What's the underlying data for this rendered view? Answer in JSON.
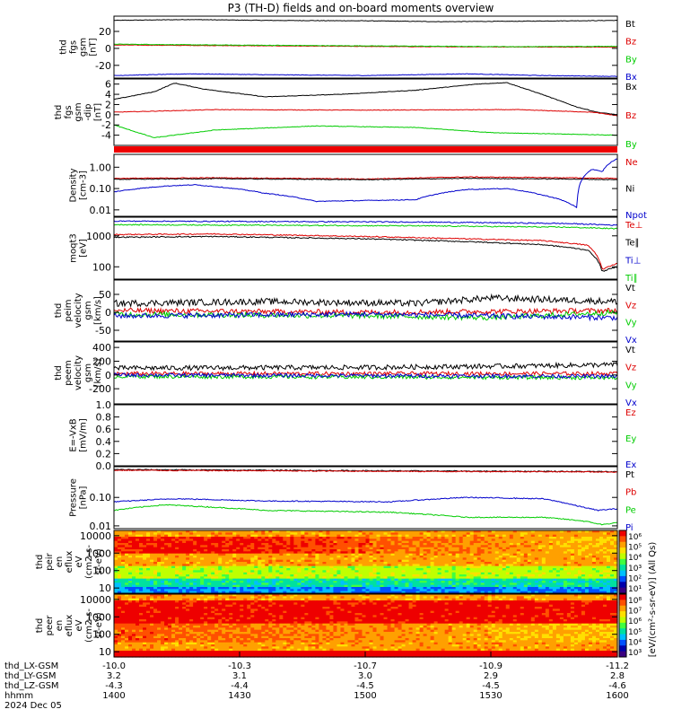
{
  "title": "P3 (TH-D) fields and on-board moments overview",
  "colors": {
    "black": "#000000",
    "red": "#dd0000",
    "green": "#00cc00",
    "blue": "#0000cc"
  },
  "chart_data": [
    {
      "type": "line",
      "ylabel": [
        "thd",
        "fgs",
        "gsm",
        "[nT]"
      ],
      "ylim": [
        -35,
        38
      ],
      "yticks": [
        {
          "v": 20,
          "label": "20"
        },
        {
          "v": 0,
          "label": "0"
        },
        {
          "v": -20,
          "label": "-20"
        }
      ],
      "series": [
        {
          "name": "Bt",
          "color": "#000000",
          "trend": [
            [
              0,
              33
            ],
            [
              0.15,
              34
            ],
            [
              0.3,
              33
            ],
            [
              0.5,
              32.5
            ],
            [
              0.65,
              31.5
            ],
            [
              0.8,
              32
            ],
            [
              1,
              33
            ]
          ]
        },
        {
          "name": "Bz",
          "color": "#dd0000",
          "trend": [
            [
              0,
              4
            ],
            [
              0.3,
              3
            ],
            [
              0.6,
              2
            ],
            [
              1,
              1.5
            ]
          ]
        },
        {
          "name": "By",
          "color": "#00cc00",
          "trend": [
            [
              0,
              5
            ],
            [
              0.2,
              4
            ],
            [
              0.5,
              3
            ],
            [
              0.8,
              2
            ],
            [
              1,
              2.5
            ]
          ]
        },
        {
          "name": "Bx",
          "color": "#0000cc",
          "trend": [
            [
              0,
              -32
            ],
            [
              0.15,
              -30
            ],
            [
              0.3,
              -31
            ],
            [
              0.5,
              -32
            ],
            [
              0.7,
              -30
            ],
            [
              0.85,
              -32
            ],
            [
              1,
              -33
            ]
          ]
        }
      ]
    },
    {
      "type": "line",
      "ylabel": [
        "thd",
        "fgs",
        "gsm",
        "-dip",
        "[nT]"
      ],
      "ylim": [
        -6,
        7
      ],
      "yticks": [
        {
          "v": 6,
          "label": "6"
        },
        {
          "v": 4,
          "label": "4"
        },
        {
          "v": 2,
          "label": "2"
        },
        {
          "v": 0,
          "label": "0"
        },
        {
          "v": -2,
          "label": "-2"
        },
        {
          "v": -4,
          "label": "-4"
        }
      ],
      "series": [
        {
          "name": "Bx",
          "color": "#000000",
          "trend": [
            [
              0,
              3
            ],
            [
              0.08,
              4.5
            ],
            [
              0.12,
              6.2
            ],
            [
              0.18,
              5
            ],
            [
              0.3,
              3.5
            ],
            [
              0.45,
              4
            ],
            [
              0.6,
              4.8
            ],
            [
              0.72,
              6
            ],
            [
              0.78,
              6.3
            ],
            [
              0.85,
              4
            ],
            [
              0.92,
              1.5
            ],
            [
              0.96,
              0.5
            ],
            [
              1,
              0
            ]
          ]
        },
        {
          "name": "Bz",
          "color": "#dd0000",
          "trend": [
            [
              0,
              0.5
            ],
            [
              0.2,
              1
            ],
            [
              0.5,
              0.9
            ],
            [
              0.8,
              1
            ],
            [
              0.95,
              0.5
            ],
            [
              1,
              -0.2
            ]
          ]
        },
        {
          "name": "By",
          "color": "#00cc00",
          "trend": [
            [
              0,
              -2
            ],
            [
              0.08,
              -4.5
            ],
            [
              0.2,
              -3
            ],
            [
              0.4,
              -2.2
            ],
            [
              0.6,
              -2.5
            ],
            [
              0.75,
              -3.5
            ],
            [
              0.9,
              -3.8
            ],
            [
              1,
              -4
            ]
          ]
        }
      ]
    },
    {
      "type": "line",
      "yscale": "log",
      "ylabel": [
        "Density",
        "[cm-3]"
      ],
      "ylim": [
        0.005,
        4
      ],
      "yticks": [
        {
          "v": 1,
          "label": "1.00"
        },
        {
          "v": 0.1,
          "label": "0.10"
        },
        {
          "v": 0.01,
          "label": "0.01"
        }
      ],
      "series": [
        {
          "name": "Ne",
          "color": "#dd0000",
          "trend": [
            [
              0,
              0.3
            ],
            [
              0.2,
              0.32
            ],
            [
              0.5,
              0.28
            ],
            [
              0.7,
              0.35
            ],
            [
              0.9,
              0.32
            ],
            [
              1,
              0.3
            ]
          ]
        },
        {
          "name": "Ni",
          "color": "#000000",
          "trend": [
            [
              0,
              0.27
            ],
            [
              0.2,
              0.29
            ],
            [
              0.5,
              0.26
            ],
            [
              0.7,
              0.3
            ],
            [
              0.9,
              0.28
            ],
            [
              1,
              0.26
            ]
          ]
        },
        {
          "name": "Npot",
          "color": "#0000cc",
          "trend": [
            [
              0,
              0.07
            ],
            [
              0.1,
              0.13
            ],
            [
              0.16,
              0.15
            ],
            [
              0.3,
              0.06
            ],
            [
              0.4,
              0.025
            ],
            [
              0.6,
              0.03
            ],
            [
              0.7,
              0.09
            ],
            [
              0.78,
              0.1
            ],
            [
              0.85,
              0.05
            ],
            [
              0.92,
              0.012
            ],
            [
              0.95,
              0.8
            ],
            [
              0.97,
              0.6
            ],
            [
              1,
              2.5
            ]
          ]
        }
      ]
    },
    {
      "type": "line",
      "yscale": "log",
      "ylabel": [
        "moqt3",
        "[eV]"
      ],
      "ylim": [
        40,
        4000
      ],
      "yticks": [
        {
          "v": 1000,
          "label": "1000"
        },
        {
          "v": 100,
          "label": "100"
        }
      ],
      "series": [
        {
          "name": "Te⊥",
          "color": "#dd0000",
          "trend": [
            [
              0,
              1100
            ],
            [
              0.2,
              1150
            ],
            [
              0.5,
              950
            ],
            [
              0.7,
              800
            ],
            [
              0.85,
              700
            ],
            [
              0.94,
              500
            ],
            [
              0.97,
              80
            ],
            [
              1,
              130
            ]
          ]
        },
        {
          "name": "Te∥",
          "color": "#000000",
          "trend": [
            [
              0,
              900
            ],
            [
              0.2,
              950
            ],
            [
              0.5,
              800
            ],
            [
              0.7,
              650
            ],
            [
              0.85,
              520
            ],
            [
              0.94,
              350
            ],
            [
              0.97,
              70
            ],
            [
              1,
              100
            ]
          ]
        },
        {
          "name": "Ti⊥",
          "color": "#0000cc",
          "trend": [
            [
              0,
              3000
            ],
            [
              0.3,
              2900
            ],
            [
              0.6,
              2800
            ],
            [
              0.9,
              2500
            ],
            [
              1,
              2200
            ]
          ]
        },
        {
          "name": "Ti∥",
          "color": "#00cc00",
          "trend": [
            [
              0,
              2300
            ],
            [
              0.3,
              2200
            ],
            [
              0.6,
              2100
            ],
            [
              0.9,
              1900
            ],
            [
              1,
              1700
            ]
          ]
        }
      ]
    },
    {
      "type": "line",
      "ylabel": [
        "thd",
        "peim",
        "velocity",
        "gsm",
        "[km/s]"
      ],
      "ylim": [
        -80,
        90
      ],
      "yticks": [
        {
          "v": 50,
          "label": "50"
        },
        {
          "v": 0,
          "label": "0"
        },
        {
          "v": -50,
          "label": "-50"
        }
      ],
      "series": [
        {
          "name": "Vt",
          "color": "#000000",
          "trend": [
            [
              0,
              25
            ],
            [
              0.3,
              30
            ],
            [
              0.6,
              25
            ],
            [
              0.75,
              40
            ],
            [
              1,
              30
            ]
          ]
        },
        {
          "name": "Vz",
          "color": "#dd0000",
          "trend": [
            [
              0,
              5
            ],
            [
              0.5,
              0
            ],
            [
              1,
              5
            ]
          ]
        },
        {
          "name": "Vy",
          "color": "#00cc00",
          "trend": [
            [
              0,
              -5
            ],
            [
              0.5,
              -10
            ],
            [
              0.75,
              -15
            ],
            [
              1,
              0
            ]
          ]
        },
        {
          "name": "Vx",
          "color": "#0000cc",
          "trend": [
            [
              0,
              -10
            ],
            [
              0.5,
              -5
            ],
            [
              1,
              -15
            ]
          ]
        }
      ]
    },
    {
      "type": "line",
      "ylabel": [
        "thd",
        "peem",
        "velocity",
        "gsm",
        "[km/s]"
      ],
      "ylim": [
        -420,
        480
      ],
      "yticks": [
        {
          "v": 400,
          "label": "400"
        },
        {
          "v": 200,
          "label": "200"
        },
        {
          "v": 0,
          "label": "0"
        },
        {
          "v": -200,
          "label": "-200"
        }
      ],
      "series": [
        {
          "name": "Vt",
          "color": "#000000",
          "trend": [
            [
              0,
              100
            ],
            [
              0.5,
              110
            ],
            [
              0.8,
              130
            ],
            [
              1,
              150
            ]
          ]
        },
        {
          "name": "Vz",
          "color": "#dd0000",
          "trend": [
            [
              0,
              20
            ],
            [
              1,
              20
            ]
          ]
        },
        {
          "name": "Vy",
          "color": "#00cc00",
          "trend": [
            [
              0,
              -20
            ],
            [
              1,
              -40
            ]
          ]
        },
        {
          "name": "Vx",
          "color": "#0000cc",
          "trend": [
            [
              0,
              0
            ],
            [
              1,
              -20
            ]
          ]
        }
      ]
    },
    {
      "type": "line",
      "ylabel": [
        "E=-VxB",
        "[mV/m]"
      ],
      "ylim": [
        0,
        1
      ],
      "yticks": [
        {
          "v": 1.0,
          "label": "1.0"
        },
        {
          "v": 0.8,
          "label": "0.8"
        },
        {
          "v": 0.6,
          "label": "0.6"
        },
        {
          "v": 0.4,
          "label": "0.4"
        },
        {
          "v": 0.2,
          "label": "0.2"
        },
        {
          "v": 0.0,
          "label": "0.0"
        }
      ],
      "series": [
        {
          "name": "Ez",
          "color": "#dd0000",
          "trend": []
        },
        {
          "name": "Ey",
          "color": "#00cc00",
          "trend": []
        },
        {
          "name": "Ex",
          "color": "#0000cc",
          "trend": []
        }
      ]
    },
    {
      "type": "line",
      "yscale": "log",
      "ylabel": [
        "Pressure",
        "[nPa]"
      ],
      "ylim": [
        0.008,
        1.2
      ],
      "yticks": [
        {
          "v": 0.1,
          "label": "0.10"
        },
        {
          "v": 0.01,
          "label": "0.01"
        }
      ],
      "series": [
        {
          "name": "Pt",
          "color": "#000000",
          "trend": [
            [
              0,
              0.95
            ],
            [
              0.3,
              0.9
            ],
            [
              0.6,
              0.85
            ],
            [
              0.9,
              0.82
            ],
            [
              1,
              0.8
            ]
          ]
        },
        {
          "name": "Pb",
          "color": "#dd0000",
          "trend": [
            [
              0,
              0.9
            ],
            [
              0.3,
              0.86
            ],
            [
              0.6,
              0.82
            ],
            [
              0.9,
              0.8
            ],
            [
              1,
              0.78
            ]
          ]
        },
        {
          "name": "Pe",
          "color": "#00cc00",
          "trend": [
            [
              0,
              0.035
            ],
            [
              0.1,
              0.055
            ],
            [
              0.3,
              0.035
            ],
            [
              0.55,
              0.03
            ],
            [
              0.7,
              0.02
            ],
            [
              0.85,
              0.02
            ],
            [
              0.93,
              0.015
            ],
            [
              0.97,
              0.011
            ],
            [
              1,
              0.013
            ]
          ]
        },
        {
          "name": "Pi",
          "color": "#0000cc",
          "trend": [
            [
              0,
              0.07
            ],
            [
              0.12,
              0.09
            ],
            [
              0.3,
              0.075
            ],
            [
              0.55,
              0.07
            ],
            [
              0.7,
              0.1
            ],
            [
              0.85,
              0.09
            ],
            [
              0.92,
              0.05
            ],
            [
              0.96,
              0.035
            ],
            [
              1,
              0.04
            ]
          ]
        }
      ]
    },
    {
      "type": "heatmap",
      "yscale": "log",
      "ylabel": [
        "thd",
        "peir",
        "en",
        "eflux",
        "eV",
        "(cm2-s-",
        "sr-eV)"
      ],
      "ylim": [
        5,
        20000
      ],
      "yticks": [
        {
          "v": 10000,
          "label": "10000"
        },
        {
          "v": 1000,
          "label": "1000"
        },
        {
          "v": 100,
          "label": "100"
        },
        {
          "v": 10,
          "label": "10"
        }
      ]
    },
    {
      "type": "heatmap",
      "yscale": "log",
      "ylabel": [
        "thd",
        "peer",
        "en",
        "eflux",
        "eV",
        "(cm2-s-",
        "sr-eV)"
      ],
      "ylim": [
        5,
        20000
      ],
      "yticks": [
        {
          "v": 10000,
          "label": "10000"
        },
        {
          "v": 1000,
          "label": "1000"
        },
        {
          "v": 100,
          "label": "100"
        },
        {
          "v": 10,
          "label": "10"
        }
      ]
    }
  ],
  "colorbar": {
    "upper_ticks": [
      "10⁶",
      "10⁵",
      "10⁴",
      "10³",
      "10²",
      "10¹"
    ],
    "lower_ticks": [
      "10⁸",
      "10⁷",
      "10⁶",
      "10⁵",
      "10⁴",
      "10³"
    ],
    "label": "[eV/(cm²-s-sr-eV)]",
    "label2": "[eV/(cm²-s-sr-eV)] (All Qs)"
  },
  "xaxis": {
    "rows": [
      {
        "name": "thd_LX-GSM",
        "values": [
          "-10.0",
          "-10.3",
          "-10.7",
          "-10.9",
          "-11.2"
        ]
      },
      {
        "name": "thd_LY-GSM",
        "values": [
          "3.2",
          "3.1",
          "3.0",
          "2.9",
          "2.8"
        ]
      },
      {
        "name": "thd_LZ-GSM",
        "values": [
          "-4.3",
          "-4.4",
          "-4.5",
          "-4.5",
          "-4.6"
        ]
      },
      {
        "name": "hhmm",
        "values": [
          "1400",
          "1430",
          "1500",
          "1530",
          "1600"
        ]
      }
    ],
    "date": "2024 Dec 05"
  }
}
